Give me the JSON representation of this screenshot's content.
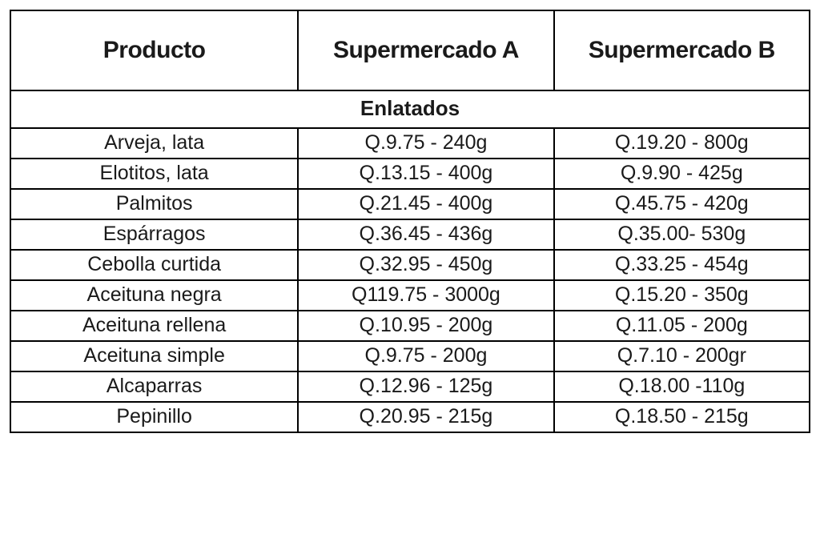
{
  "table": {
    "type": "table",
    "background_color": "#ffffff",
    "border_color": "#000000",
    "border_width": 2,
    "header_fontsize": 30,
    "header_fontweight": 700,
    "section_fontsize": 26,
    "section_fontweight": 700,
    "cell_fontsize": 25,
    "text_color": "#1a1a1a",
    "columns": [
      {
        "label": "Producto",
        "width_pct": 36,
        "align": "center"
      },
      {
        "label": "Supermercado A",
        "width_pct": 32,
        "align": "center"
      },
      {
        "label": "Supermercado B",
        "width_pct": 32,
        "align": "center"
      }
    ],
    "section_title": "Enlatados",
    "rows": [
      {
        "product": "Arveja, lata",
        "a": "Q.9.75 - 240g",
        "b": "Q.19.20 - 800g"
      },
      {
        "product": "Elotitos, lata",
        "a": "Q.13.15 - 400g",
        "b": "Q.9.90 - 425g"
      },
      {
        "product": "Palmitos",
        "a": "Q.21.45 - 400g",
        "b": "Q.45.75 - 420g"
      },
      {
        "product": "Espárragos",
        "a": "Q.36.45 - 436g",
        "b": "Q.35.00- 530g"
      },
      {
        "product": "Cebolla  curtida",
        "a": "Q.32.95 - 450g",
        "b": "Q.33.25 - 454g"
      },
      {
        "product": "Aceituna negra",
        "a": "Q119.75 - 3000g",
        "b": "Q.15.20 - 350g"
      },
      {
        "product": "Aceituna rellena",
        "a": "Q.10.95 - 200g",
        "b": "Q.11.05 - 200g"
      },
      {
        "product": "Aceituna simple",
        "a": "Q.9.75 - 200g",
        "b": "Q.7.10 - 200gr"
      },
      {
        "product": "Alcaparras",
        "a": "Q.12.96 - 125g",
        "b": "Q.18.00 -110g"
      },
      {
        "product": "Pepinillo",
        "a": "Q.20.95 - 215g",
        "b": "Q.18.50 - 215g"
      }
    ]
  }
}
